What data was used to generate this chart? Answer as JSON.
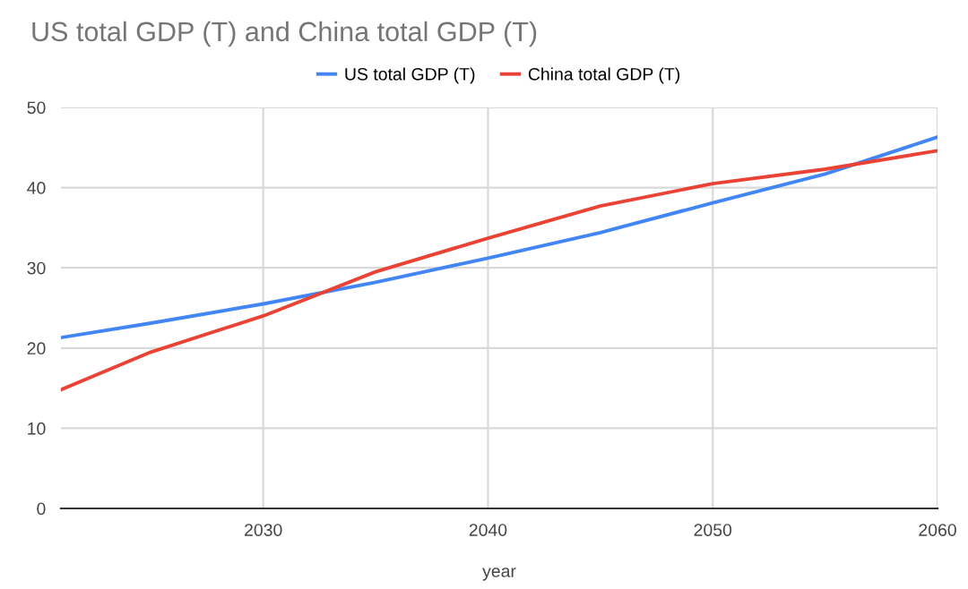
{
  "chart_data": {
    "type": "line",
    "title": "US total GDP (T) and China total GDP (T)",
    "xlabel": "year",
    "x": [
      2021,
      2025,
      2030,
      2035,
      2040,
      2045,
      2050,
      2055,
      2060
    ],
    "series": [
      {
        "name": "US total GDP (T)",
        "color": "#4285f4",
        "values": [
          21.3,
          23.1,
          25.5,
          28.2,
          31.2,
          34.4,
          38.1,
          41.7,
          46.3
        ]
      },
      {
        "name": "China total GDP (T)",
        "color": "#ea4335",
        "values": [
          14.8,
          19.5,
          24.0,
          29.5,
          33.7,
          37.7,
          40.5,
          42.3,
          44.6
        ]
      }
    ],
    "xlim": [
      2021,
      2060
    ],
    "xticks": [
      2030,
      2040,
      2050,
      2060
    ],
    "ylim": [
      0,
      50
    ],
    "yticks": [
      0,
      10,
      20,
      30,
      40,
      50
    ],
    "grid": true,
    "legend": "top",
    "marker": "none",
    "line_style": "solid"
  }
}
